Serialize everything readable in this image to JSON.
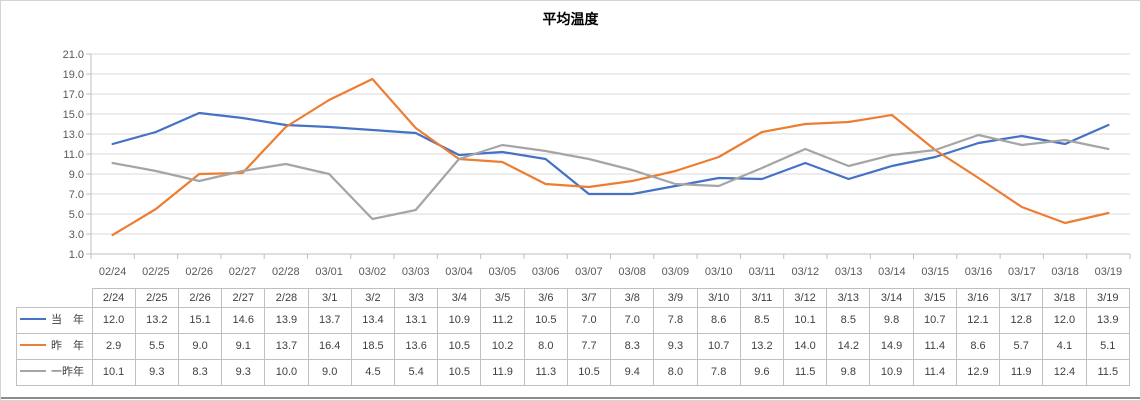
{
  "title": "平均温度",
  "colors": {
    "series_this_year": "#4472C4",
    "series_last_year": "#ED7D31",
    "series_two_years_ago": "#A5A5A5",
    "gridline": "#D9D9D9",
    "axis_line": "#BFBFBF",
    "axis_text": "#595959",
    "table_border": "#BFBFBF",
    "table_text": "#3F3F3F"
  },
  "chart_data": {
    "type": "line",
    "title": "平均温度",
    "xlabel": "",
    "ylabel": "",
    "ylim": [
      1.0,
      21.0
    ],
    "y_ticks": [
      21.0,
      19.0,
      17.0,
      15.0,
      13.0,
      11.0,
      9.0,
      7.0,
      5.0,
      3.0,
      1.0
    ],
    "grid": "horizontal",
    "legend_position": "data-table-left",
    "x_tick_labels": [
      "02/24",
      "02/25",
      "02/26",
      "02/27",
      "02/28",
      "03/01",
      "03/02",
      "03/03",
      "03/04",
      "03/05",
      "03/06",
      "03/07",
      "03/08",
      "03/09",
      "03/10",
      "03/11",
      "03/12",
      "03/13",
      "03/14",
      "03/15",
      "03/16",
      "03/17",
      "03/18",
      "03/19"
    ],
    "table_column_headers": [
      "2/24",
      "2/25",
      "2/26",
      "2/27",
      "2/28",
      "3/1",
      "3/2",
      "3/3",
      "3/4",
      "3/5",
      "3/6",
      "3/7",
      "3/8",
      "3/9",
      "3/10",
      "3/11",
      "3/12",
      "3/13",
      "3/14",
      "3/15",
      "3/16",
      "3/17",
      "3/18",
      "3/19"
    ],
    "series": [
      {
        "name": "当　年",
        "key": "this-year",
        "color": "#4472C4",
        "values": [
          12.0,
          13.2,
          15.1,
          14.6,
          13.9,
          13.7,
          13.4,
          13.1,
          10.9,
          11.2,
          10.5,
          7.0,
          7.0,
          7.8,
          8.6,
          8.5,
          10.1,
          8.5,
          9.8,
          10.7,
          12.1,
          12.8,
          12.0,
          13.9
        ]
      },
      {
        "name": "昨　年",
        "key": "last-year",
        "color": "#ED7D31",
        "values": [
          2.9,
          5.5,
          9.0,
          9.1,
          13.7,
          16.4,
          18.5,
          13.6,
          10.5,
          10.2,
          8.0,
          7.7,
          8.3,
          9.3,
          10.7,
          13.2,
          14.0,
          14.2,
          14.9,
          11.4,
          8.6,
          5.7,
          4.1,
          5.1
        ]
      },
      {
        "name": "一昨年",
        "key": "two-years-ago",
        "color": "#A5A5A5",
        "values": [
          10.1,
          9.3,
          8.3,
          9.3,
          10.0,
          9.0,
          4.5,
          5.4,
          10.5,
          11.9,
          11.3,
          10.5,
          9.4,
          8.0,
          7.8,
          9.6,
          11.5,
          9.8,
          10.9,
          11.4,
          12.9,
          11.9,
          12.4,
          11.5
        ]
      }
    ]
  }
}
